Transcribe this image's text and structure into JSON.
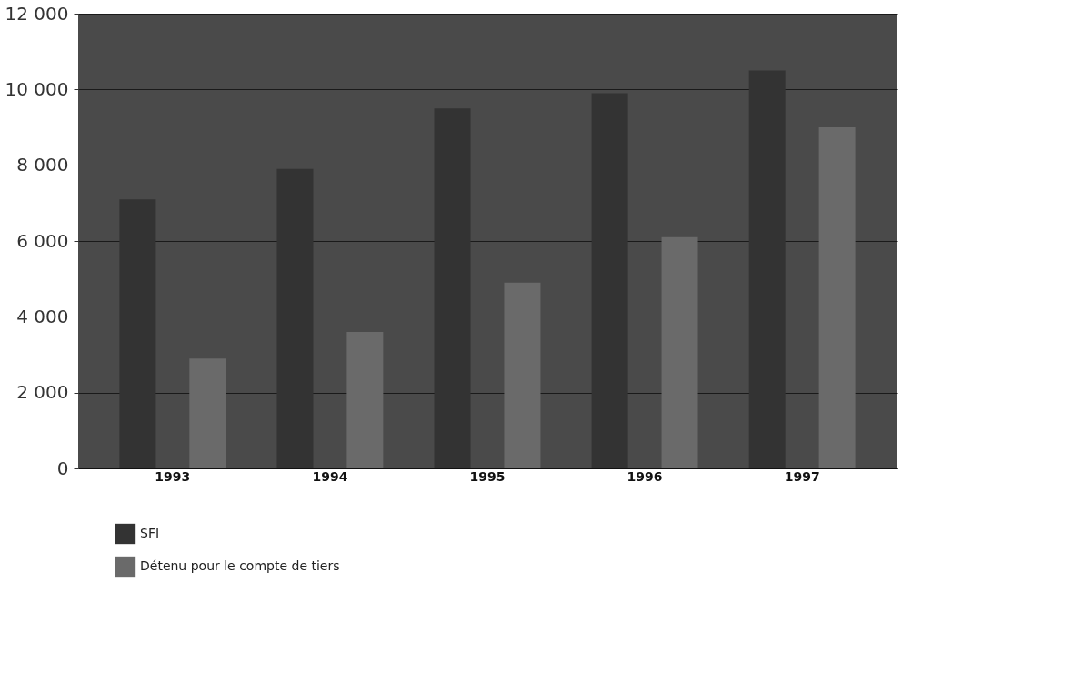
{
  "chart_data": {
    "type": "bar",
    "categories": [
      "1993",
      "1994",
      "1995",
      "1996",
      "1997"
    ],
    "series": [
      {
        "name": "SFI",
        "color": "#333333",
        "values": [
          7100,
          7900,
          9500,
          9900,
          10500
        ]
      },
      {
        "name": "Détenu pour le compte de tiers",
        "color": "#6a6a6a",
        "values": [
          2900,
          3600,
          4900,
          6100,
          9000
        ]
      }
    ],
    "ylim": [
      0,
      12000
    ],
    "yticks": [
      {
        "value": 0,
        "label": "0"
      },
      {
        "value": 2000,
        "label": "2 000"
      },
      {
        "value": 4000,
        "label": "4 000"
      },
      {
        "value": 6000,
        "label": "6 000"
      },
      {
        "value": 8000,
        "label": "8 000"
      },
      {
        "value": 10000,
        "label": "10 000"
      },
      {
        "value": 12000,
        "label": "12 000"
      }
    ],
    "grid": "y",
    "legend": "bottom left"
  }
}
